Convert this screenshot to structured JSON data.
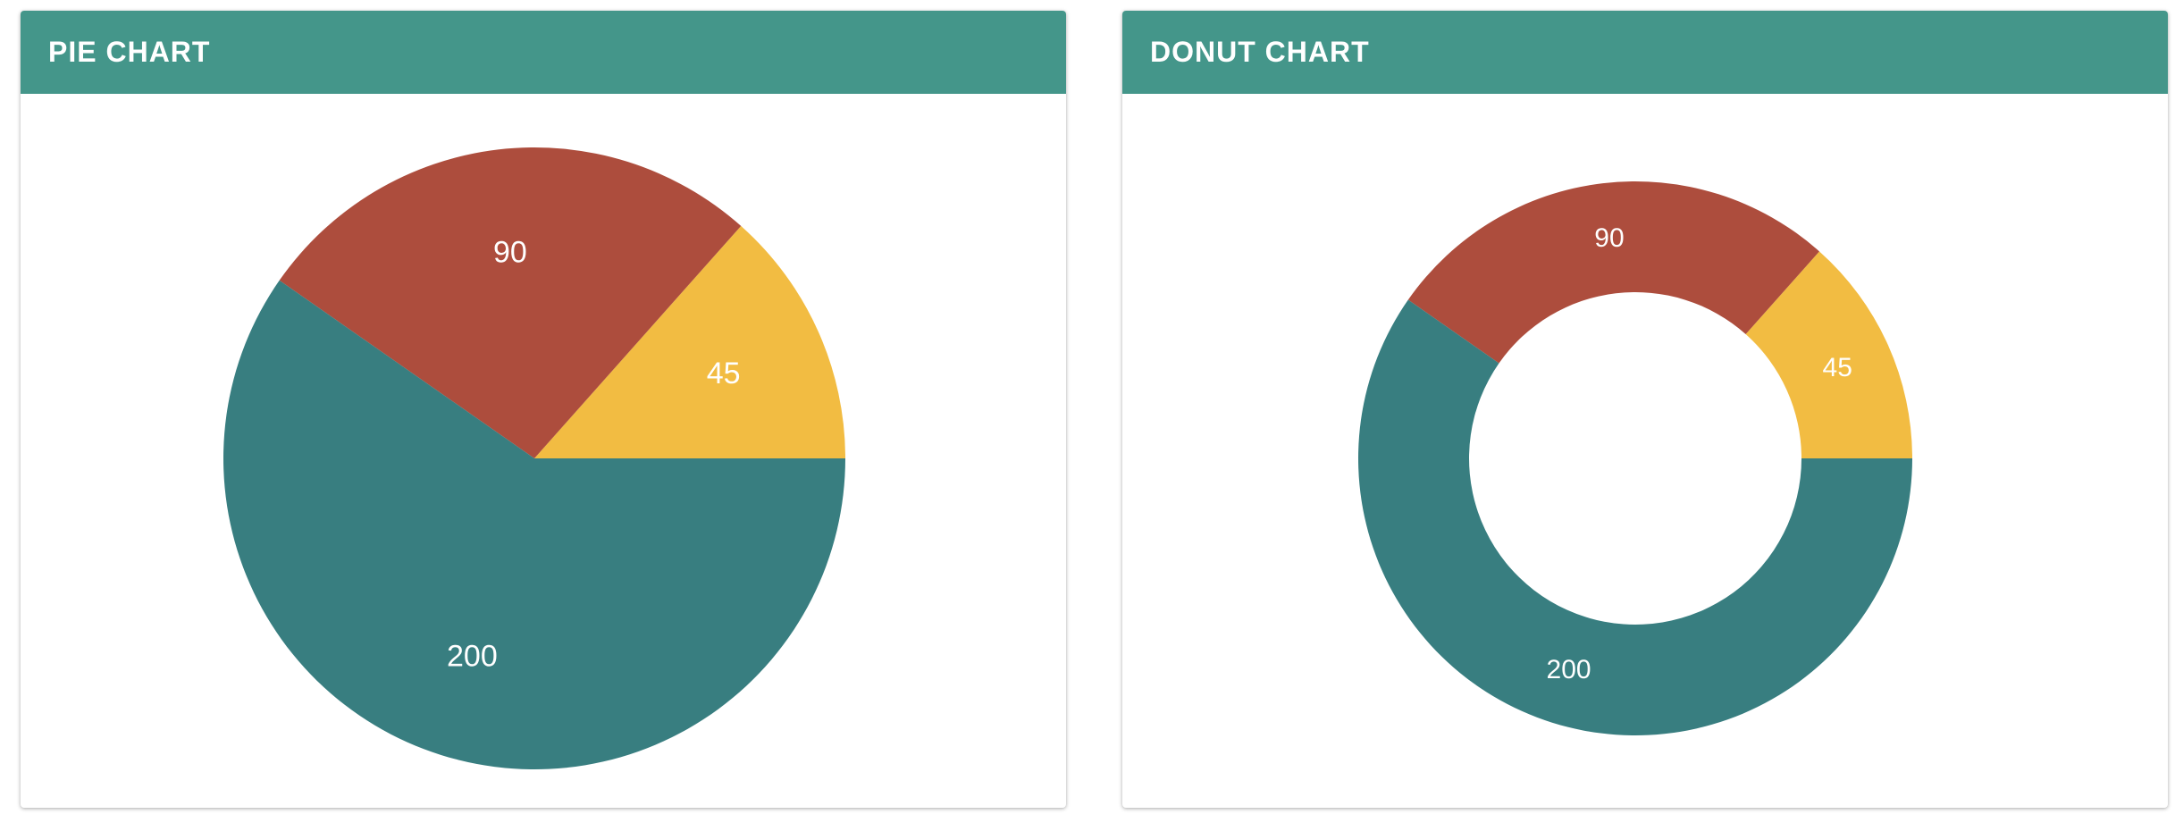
{
  "colors": {
    "header": "#44968a",
    "teal": "#387e80",
    "red": "#ad4d3d",
    "yellow": "#f2bc42"
  },
  "chart_data": [
    {
      "type": "pie",
      "title": "PIE CHART",
      "labels": [
        "45",
        "90",
        "200"
      ],
      "values": [
        45,
        90,
        200
      ],
      "colors": [
        "#f2bc42",
        "#ad4d3d",
        "#387e80"
      ],
      "data_labels": true,
      "legend": "none"
    },
    {
      "type": "pie",
      "variant": "donut",
      "title": "DONUT CHART",
      "labels": [
        "45",
        "90",
        "200"
      ],
      "values": [
        45,
        90,
        200
      ],
      "colors": [
        "#f2bc42",
        "#ad4d3d",
        "#387e80"
      ],
      "data_labels": true,
      "legend": "none"
    }
  ]
}
